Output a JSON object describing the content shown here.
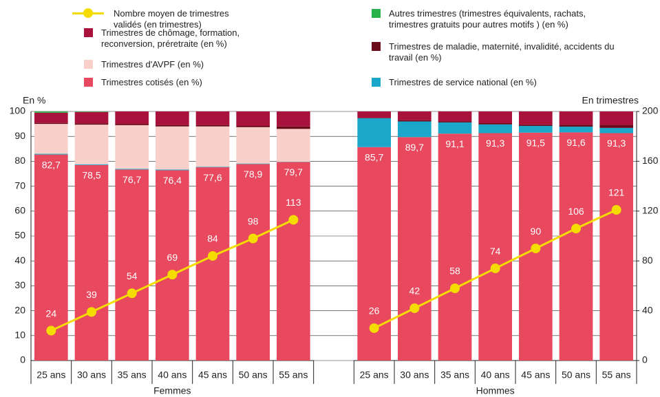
{
  "chart_data": {
    "type": "bar",
    "stacked": true,
    "ylabel": "En %",
    "y2label": "En trimestres",
    "ylim": [
      0,
      100
    ],
    "yticks": [
      0,
      10,
      20,
      30,
      40,
      50,
      60,
      70,
      80,
      90,
      100
    ],
    "y2lim": [
      0,
      200
    ],
    "y2ticks": [
      0,
      40,
      80,
      120,
      160,
      200
    ],
    "categories": [
      "25 ans",
      "30 ans",
      "35 ans",
      "40 ans",
      "45 ans",
      "50 ans",
      "55 ans",
      null,
      "25 ans",
      "30 ans",
      "35 ans",
      "40 ans",
      "45 ans",
      "50 ans",
      "55 ans"
    ],
    "groups": [
      "Femmes",
      "Hommes"
    ],
    "series": [
      {
        "name": "Trimestres cotisés (en %)",
        "color": "#e8495e",
        "values": [
          82.7,
          78.5,
          76.7,
          76.4,
          77.6,
          78.9,
          79.7,
          null,
          85.7,
          89.7,
          91.1,
          91.3,
          91.5,
          91.6,
          91.3
        ],
        "value_labels": [
          "82,7",
          "78,5",
          "76,7",
          "76,4",
          "77,6",
          "78,9",
          "79,7",
          null,
          "85,7",
          "89,7",
          "91,1",
          "91,3",
          "91,5",
          "91,6",
          "91,3"
        ]
      },
      {
        "name": "Trimestres de service national (en %)",
        "color": "#1aa7c9",
        "values": [
          0.3,
          0.3,
          0.3,
          0.3,
          0.2,
          0.2,
          0.1,
          null,
          11.6,
          6.3,
          4.5,
          3.5,
          2.7,
          2.3,
          2.1
        ]
      },
      {
        "name": "Trimestres d'AVPF (en %)",
        "color": "#f9d0c9",
        "values": [
          12.0,
          15.9,
          17.5,
          17.3,
          16.2,
          14.6,
          13.2,
          null,
          0,
          0,
          0,
          0,
          0,
          0,
          0
        ]
      },
      {
        "name": "Trimestres de maladie, maternité, invalidité, accidents du travail (en %)",
        "color": "#6a0a1a",
        "values": [
          0.4,
          0.5,
          0.5,
          0.5,
          0.5,
          0.5,
          1.0,
          null,
          0.2,
          0.5,
          0.5,
          0.5,
          0.5,
          0.8,
          1.2
        ]
      },
      {
        "name": "Trimestres de chômage, formation, reconversion, préretraite (en %)",
        "color": "#a8123d",
        "values": [
          4.1,
          4.6,
          5.0,
          5.5,
          5.5,
          5.8,
          6.0,
          null,
          2.5,
          3.5,
          3.9,
          4.7,
          5.3,
          5.3,
          5.4
        ]
      },
      {
        "name": "Autres trimestres (trimestres équivalents, rachats, trimestres gratuits pour autres motifs ) (en %)",
        "color": "#2ab24b",
        "values": [
          0.5,
          0.2,
          0,
          0,
          0,
          0,
          0,
          null,
          0,
          0,
          0,
          0,
          0,
          0,
          0
        ]
      },
      {
        "name": "Nombre moyen de trimestres validés (en trimestres)",
        "color": "#f5dc00",
        "type": "line",
        "axis": "y2",
        "values": [
          24,
          39,
          54,
          69,
          84,
          98,
          113,
          null,
          26,
          42,
          58,
          74,
          90,
          106,
          121
        ]
      }
    ]
  }
}
